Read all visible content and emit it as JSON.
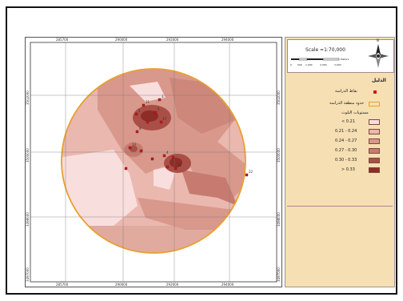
{
  "map": {
    "top_ticks": [
      "285700",
      "290000",
      "292000",
      "294000"
    ],
    "bottom_ticks": [
      "285700",
      "290000",
      "292000",
      "294000"
    ],
    "left_ticks": [
      "3502000",
      "3500000",
      "3498000",
      "3497000"
    ],
    "right_ticks": [
      "3502000",
      "3500000",
      "3498000",
      "3497000"
    ],
    "point_labels": [
      "3",
      "11",
      "1",
      "5",
      "17",
      "8",
      "13",
      "4",
      "12",
      "22"
    ]
  },
  "legend": {
    "scale_text": "Scale =1:70,000",
    "scale_ticks": [
      "0",
      "500",
      "1,000",
      "2,000",
      "3,000",
      "4,000"
    ],
    "scale_unit": "Meters",
    "title": "الدليل",
    "points_label": "نقاط الدراسة",
    "boundary_label": "حدود منطقة الدراسة",
    "classes_title": "مستويات التلوث",
    "classes": [
      {
        "label": "< 0.21",
        "color": "#f9dede"
      },
      {
        "label": "0.21 - 0.24",
        "color": "#eab8ae"
      },
      {
        "label": "0.24 - 0.27",
        "color": "#d9988c"
      },
      {
        "label": "0.27 - 0.30",
        "color": "#c77b70"
      },
      {
        "label": "0.30 - 0.33",
        "color": "#a94f47"
      },
      {
        "label": "> 0.33",
        "color": "#8e2c28"
      }
    ],
    "north": "N"
  }
}
